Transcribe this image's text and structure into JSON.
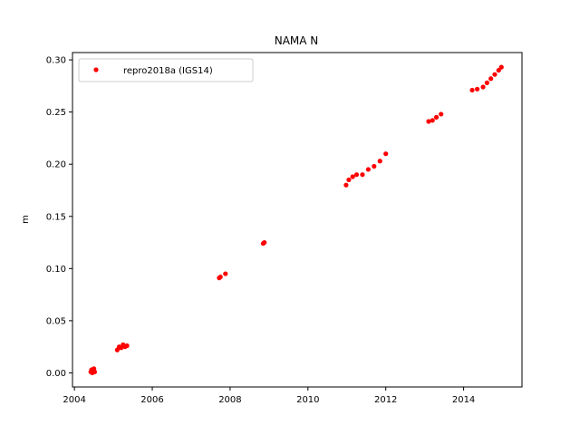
{
  "chart_data": {
    "type": "scatter",
    "title": "NAMA N",
    "xlabel": "",
    "ylabel": "m",
    "xlim": [
      2003.95,
      2015.5
    ],
    "ylim": [
      -0.0135,
      0.307
    ],
    "x_ticks": [
      2004,
      2006,
      2008,
      2010,
      2012,
      2014
    ],
    "x_tick_labels": [
      "2004",
      "2006",
      "2008",
      "2010",
      "2012",
      "2014"
    ],
    "y_ticks": [
      0.0,
      0.05,
      0.1,
      0.15,
      0.2,
      0.25,
      0.3
    ],
    "y_tick_labels": [
      "0.00",
      "0.05",
      "0.10",
      "0.15",
      "0.20",
      "0.25",
      "0.30"
    ],
    "grid": false,
    "legend_position": "top-left",
    "series": [
      {
        "name": "repro2018a (IGS14)",
        "color": "#ff0000",
        "marker": "circle",
        "x": [
          2004.42,
          2004.44,
          2004.46,
          2004.48,
          2004.5,
          2004.52,
          2005.1,
          2005.15,
          2005.2,
          2005.25,
          2005.3,
          2005.35,
          2007.72,
          2007.75,
          2007.88,
          2008.85,
          2008.88,
          2010.98,
          2011.05,
          2011.15,
          2011.25,
          2011.4,
          2011.55,
          2011.7,
          2011.85,
          2012.0,
          2013.1,
          2013.2,
          2013.3,
          2013.42,
          2014.22,
          2014.35,
          2014.5,
          2014.6,
          2014.7,
          2014.8,
          2014.9,
          2014.97
        ],
        "y": [
          0.001,
          0.003,
          0.0,
          0.002,
          0.004,
          0.001,
          0.022,
          0.025,
          0.024,
          0.027,
          0.025,
          0.026,
          0.091,
          0.092,
          0.095,
          0.124,
          0.125,
          0.18,
          0.185,
          0.188,
          0.19,
          0.19,
          0.195,
          0.198,
          0.203,
          0.21,
          0.241,
          0.242,
          0.245,
          0.248,
          0.271,
          0.272,
          0.274,
          0.278,
          0.282,
          0.286,
          0.29,
          0.293
        ]
      }
    ]
  }
}
